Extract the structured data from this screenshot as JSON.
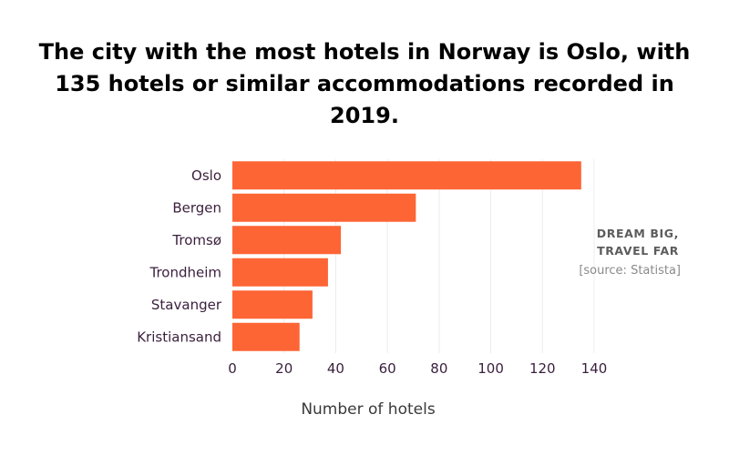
{
  "title": "The city with the most hotels in Norway is Oslo, with 135 hotels or similar accommodations recorded in 2019.",
  "brand": {
    "line1": "DREAM BIG,",
    "line2": "TRAVEL FAR"
  },
  "source": "[source: Statista]",
  "colors": {
    "bar": "#fd6535",
    "grid": "#ececec",
    "label": "#3a1f3d"
  },
  "chart_data": {
    "type": "bar",
    "orientation": "horizontal",
    "categories": [
      "Oslo",
      "Bergen",
      "Tromsø",
      "Trondheim",
      "Stavanger",
      "Kristiansand"
    ],
    "values": [
      135,
      71,
      42,
      37,
      31,
      26
    ],
    "xlabel": "Number of hotels",
    "ylabel": "",
    "xlim": [
      0,
      140
    ],
    "xticks": [
      0,
      20,
      40,
      60,
      80,
      100,
      120,
      140
    ],
    "grid": true
  }
}
